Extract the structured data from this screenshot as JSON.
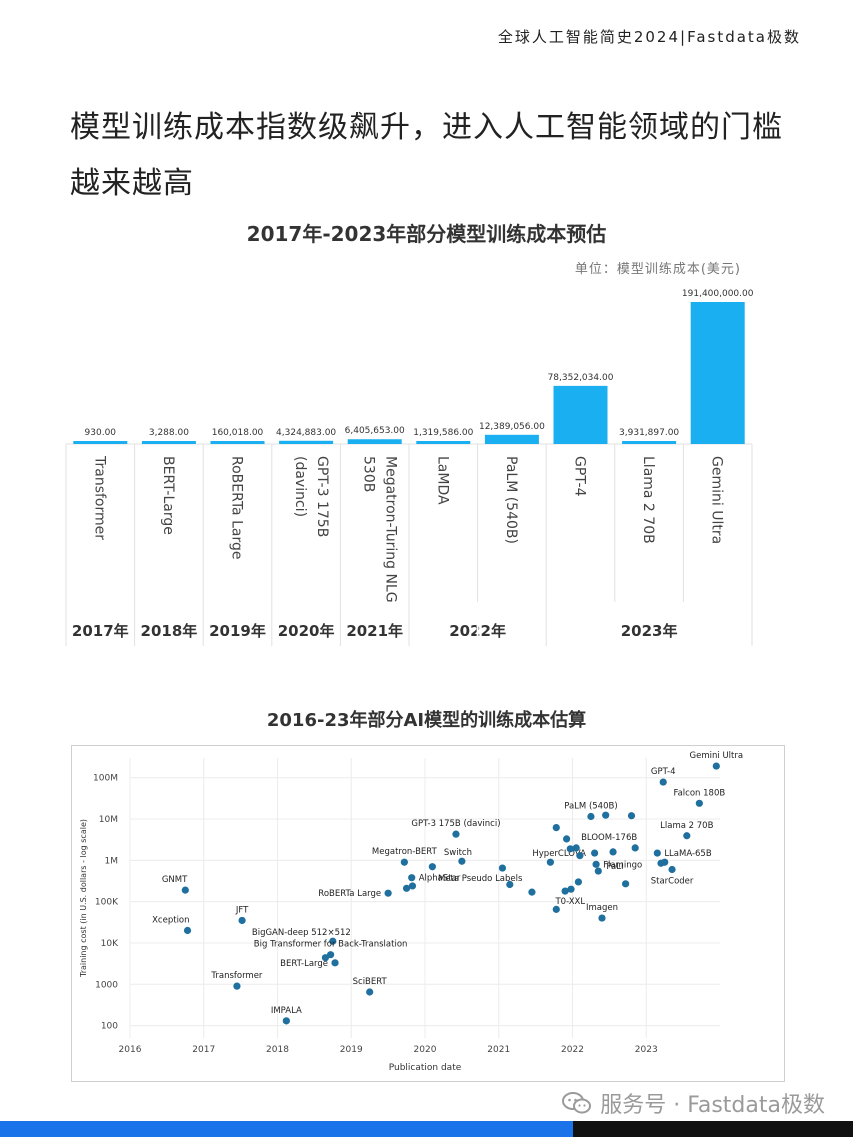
{
  "header": {
    "brand": "全球人工智能简史2024|Fastdata极数"
  },
  "page": {
    "title": "模型训练成本指数级飙升，进入人工智能领域的门槛越来越高"
  },
  "footer": {
    "watermark": "服务号 · Fastdata极数"
  },
  "colors": {
    "bar": "#19aff0",
    "dot": "#1f6f9f",
    "accent": "#1a73e8"
  },
  "chart_data": [
    {
      "type": "bar",
      "title": "2017年-2023年部分模型训练成本预估",
      "unit": "单位：模型训练成本(美元)",
      "categories": [
        "Transformer",
        "BERT-Large",
        "RoBERTa Large",
        "GPT-3 175B (davinci)",
        "Megatron-Turing NLG 530B",
        "LaMDA",
        "PaLM (540B)",
        "GPT-4",
        "Llama 2 70B",
        "Gemini Ultra"
      ],
      "values": [
        930,
        3288,
        160018,
        4324883,
        6405653,
        1319586,
        12389056,
        78352034,
        3931897,
        191400000
      ],
      "value_labels": [
        "930.00",
        "3,288.00",
        "160,018.00",
        "4,324,883.00",
        "6,405,653.00",
        "1,319,586.00",
        "12,389,056.00",
        "78,352,034.00",
        "3,931,897.00",
        "191,400,000.00"
      ],
      "years": [
        {
          "label": "2017年",
          "start": 0,
          "end": 0
        },
        {
          "label": "2018年",
          "start": 1,
          "end": 1
        },
        {
          "label": "2019年",
          "start": 2,
          "end": 2
        },
        {
          "label": "2020年",
          "start": 3,
          "end": 3
        },
        {
          "label": "2021年",
          "start": 4,
          "end": 4
        },
        {
          "label": "2022年",
          "start": 5,
          "end": 6
        },
        {
          "label": "2023年",
          "start": 7,
          "end": 9
        }
      ],
      "grid": false
    },
    {
      "type": "scatter",
      "title": "2016-23年部分AI模型的训练成本估算",
      "xlabel": "Publication date",
      "ylabel": "Training cost (in U.S. dollars - log scale)",
      "y_scale": "log",
      "xlim": [
        2016,
        2024
      ],
      "ylim": [
        50,
        300000000
      ],
      "x_ticks": [
        "2016",
        "2017",
        "2018",
        "2019",
        "2020",
        "2021",
        "2022",
        "2023"
      ],
      "y_ticks": [
        {
          "value": 100,
          "label": "100"
        },
        {
          "value": 1000,
          "label": "1000"
        },
        {
          "value": 10000,
          "label": "10K"
        },
        {
          "value": 100000,
          "label": "100K"
        },
        {
          "value": 1000000,
          "label": "1M"
        },
        {
          "value": 10000000,
          "label": "10M"
        },
        {
          "value": 100000000,
          "label": "100M"
        }
      ],
      "grid": true,
      "points": [
        {
          "x": 2016.75,
          "y": 190000,
          "label": "GNMT",
          "pos": "above-left"
        },
        {
          "x": 2016.78,
          "y": 20000,
          "label": "Xception",
          "pos": "above-left"
        },
        {
          "x": 2017.52,
          "y": 35000,
          "label": "JFT",
          "pos": "above"
        },
        {
          "x": 2017.45,
          "y": 900,
          "label": "Transformer",
          "pos": "above"
        },
        {
          "x": 2018.12,
          "y": 130,
          "label": "IMPALA",
          "pos": "above"
        },
        {
          "x": 2018.75,
          "y": 11000,
          "label": "BigGAN-deep 512×512",
          "pos": "left-above"
        },
        {
          "x": 2018.72,
          "y": 5200,
          "label": "Big Transformer for Back-Translation",
          "pos": "above"
        },
        {
          "x": 2018.78,
          "y": 3300,
          "label": "BERT-Large",
          "pos": "left"
        },
        {
          "x": 2018.65,
          "y": 4400,
          "label": "",
          "pos": ""
        },
        {
          "x": 2019.25,
          "y": 650,
          "label": "SciBERT",
          "pos": "above"
        },
        {
          "x": 2019.5,
          "y": 160000,
          "label": "RoBERTa Large",
          "pos": "left"
        },
        {
          "x": 2019.72,
          "y": 900000,
          "label": "Megatron-BERT",
          "pos": "above"
        },
        {
          "x": 2019.82,
          "y": 380000,
          "label": "AlphaStar",
          "pos": "right"
        },
        {
          "x": 2019.75,
          "y": 210000,
          "label": "",
          "pos": ""
        },
        {
          "x": 2019.83,
          "y": 240000,
          "label": "",
          "pos": ""
        },
        {
          "x": 2020.1,
          "y": 700000,
          "label": "",
          "pos": ""
        },
        {
          "x": 2020.42,
          "y": 4300000,
          "label": "GPT-3 175B (davinci)",
          "pos": "above"
        },
        {
          "x": 2020.5,
          "y": 950000,
          "label": "Switch",
          "pos": "right-above"
        },
        {
          "x": 2021.05,
          "y": 650000,
          "label": "Meta Pseudo Labels",
          "pos": "below-left"
        },
        {
          "x": 2021.15,
          "y": 260000,
          "label": "",
          "pos": ""
        },
        {
          "x": 2021.45,
          "y": 170000,
          "label": "",
          "pos": ""
        },
        {
          "x": 2021.7,
          "y": 900000,
          "label": "HyperCLOVA",
          "pos": "right-above"
        },
        {
          "x": 2021.78,
          "y": 6200000,
          "label": "",
          "pos": ""
        },
        {
          "x": 2021.92,
          "y": 3300000,
          "label": "",
          "pos": ""
        },
        {
          "x": 2021.97,
          "y": 1900000,
          "label": "",
          "pos": ""
        },
        {
          "x": 2022.05,
          "y": 2000000,
          "label": "",
          "pos": ""
        },
        {
          "x": 2022.1,
          "y": 1300000,
          "label": "",
          "pos": ""
        },
        {
          "x": 2021.9,
          "y": 180000,
          "label": "T0-XXL",
          "pos": "below-left"
        },
        {
          "x": 2021.98,
          "y": 200000,
          "label": "",
          "pos": ""
        },
        {
          "x": 2022.08,
          "y": 300000,
          "label": "",
          "pos": ""
        },
        {
          "x": 2021.78,
          "y": 65000,
          "label": "",
          "pos": ""
        },
        {
          "x": 2022.25,
          "y": 11500000,
          "label": "PaLM (540B)",
          "pos": "above"
        },
        {
          "x": 2022.45,
          "y": 12389056,
          "label": "",
          "pos": ""
        },
        {
          "x": 2022.8,
          "y": 12000000,
          "label": "",
          "pos": ""
        },
        {
          "x": 2022.3,
          "y": 1500000,
          "label": "",
          "pos": ""
        },
        {
          "x": 2022.55,
          "y": 1600000,
          "label": "",
          "pos": ""
        },
        {
          "x": 2022.32,
          "y": 800000,
          "label": "Flamingo",
          "pos": "right"
        },
        {
          "x": 2022.35,
          "y": 550000,
          "label": "PaLI",
          "pos": "right-below"
        },
        {
          "x": 2022.4,
          "y": 40000,
          "label": "Imagen",
          "pos": "above"
        },
        {
          "x": 2022.72,
          "y": 270000,
          "label": "",
          "pos": ""
        },
        {
          "x": 2022.85,
          "y": 2000000,
          "label": "BLOOM-176B",
          "pos": "above-left"
        },
        {
          "x": 2023.15,
          "y": 1500000,
          "label": "LLaMA-65B",
          "pos": "right"
        },
        {
          "x": 2023.2,
          "y": 850000,
          "label": "",
          "pos": ""
        },
        {
          "x": 2023.25,
          "y": 900000,
          "label": "",
          "pos": ""
        },
        {
          "x": 2023.35,
          "y": 600000,
          "label": "StarCoder",
          "pos": "below"
        },
        {
          "x": 2023.55,
          "y": 3931897,
          "label": "Llama 2 70B",
          "pos": "above"
        },
        {
          "x": 2023.23,
          "y": 78352034,
          "label": "GPT-4",
          "pos": "above"
        },
        {
          "x": 2023.72,
          "y": 24000000,
          "label": "Falcon 180B",
          "pos": "above"
        },
        {
          "x": 2023.95,
          "y": 191400000,
          "label": "Gemini Ultra",
          "pos": "above"
        }
      ]
    }
  ]
}
